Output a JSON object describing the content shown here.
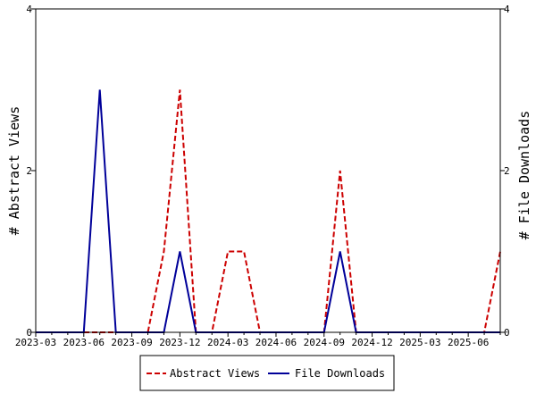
{
  "chart_data": {
    "type": "line",
    "x": [
      "2023-03",
      "2023-04",
      "2023-05",
      "2023-06",
      "2023-07",
      "2023-08",
      "2023-09",
      "2023-10",
      "2023-11",
      "2023-12",
      "2024-01",
      "2024-02",
      "2024-03",
      "2024-04",
      "2024-05",
      "2024-06",
      "2024-07",
      "2024-08",
      "2024-09",
      "2024-10",
      "2024-11",
      "2024-12",
      "2025-01",
      "2025-02",
      "2025-03",
      "2025-04",
      "2025-05",
      "2025-06",
      "2025-07",
      "2025-08"
    ],
    "x_tick_labels": [
      "2023-03",
      "2023-06",
      "2023-09",
      "2023-12",
      "2024-03",
      "2024-06",
      "2024-09",
      "2024-12",
      "2025-03",
      "2025-06"
    ],
    "series": [
      {
        "name": "Abstract Views",
        "axis": "left",
        "color": "#cc0000",
        "dash": true,
        "values": [
          0,
          0,
          0,
          0,
          0,
          0,
          0,
          0,
          1,
          3,
          0,
          0,
          1,
          1,
          0,
          0,
          0,
          0,
          0,
          2,
          0,
          0,
          0,
          0,
          0,
          0,
          0,
          0,
          0,
          1
        ]
      },
      {
        "name": "File Downloads",
        "axis": "right",
        "color": "#000099",
        "dash": false,
        "values": [
          0,
          0,
          0,
          0,
          3,
          0,
          0,
          0,
          0,
          1,
          0,
          0,
          0,
          0,
          0,
          0,
          0,
          0,
          0,
          1,
          0,
          0,
          0,
          0,
          0,
          0,
          0,
          0,
          0,
          0
        ]
      }
    ],
    "ylabel_left": "# Abstract Views",
    "ylabel_right": "# File Downloads",
    "ylim_left": [
      0,
      4
    ],
    "ylim_right": [
      0,
      4
    ],
    "y_ticks_left": [
      "0",
      "2",
      "4"
    ],
    "y_ticks_right": [
      "0",
      "2",
      "4"
    ],
    "grid": false,
    "legend_position": "bottom"
  }
}
